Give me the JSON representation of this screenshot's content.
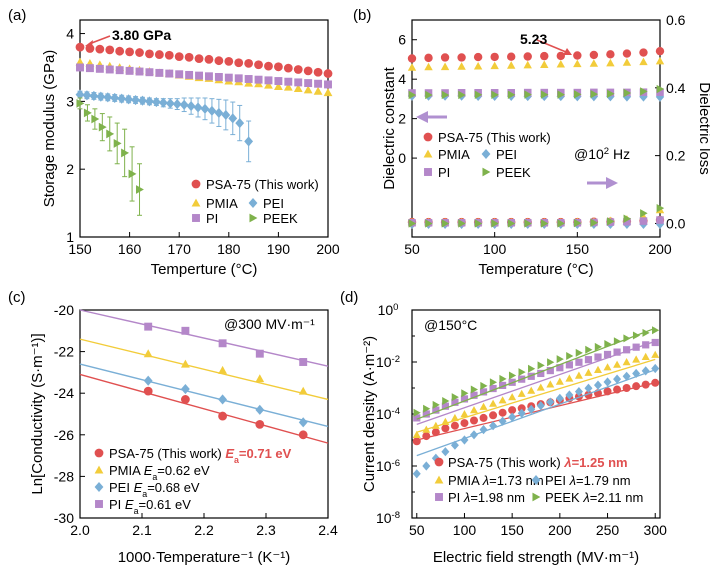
{
  "colors": {
    "psa": "#e05050",
    "pmia": "#f2cc3a",
    "pei": "#7aafd6",
    "pi": "#b487c9",
    "peek": "#7fb24c",
    "highlight": "#e05050",
    "arrow": "#b090d0"
  },
  "chart_data": [
    {
      "id": "a",
      "type": "scatter",
      "panel_label": "(a)",
      "xlabel": "Temperture (°C)",
      "ylabel": "Storage modulus (GPa)",
      "xlim": [
        150,
        200
      ],
      "ylim": [
        1,
        4.2
      ],
      "xticks": [
        150,
        160,
        170,
        180,
        190,
        200
      ],
      "yticks": [
        1,
        2,
        3,
        4
      ],
      "annotation": "3.80 GPa",
      "series": [
        {
          "name": "PSA-75 (This work)",
          "color_key": "psa",
          "marker": "circle",
          "x": [
            150,
            152,
            154,
            156,
            158,
            160,
            162,
            164,
            166,
            168,
            170,
            172,
            174,
            176,
            178,
            180,
            182,
            184,
            186,
            188,
            190,
            192,
            194,
            196,
            198,
            200
          ],
          "y": [
            3.8,
            3.78,
            3.77,
            3.76,
            3.74,
            3.73,
            3.72,
            3.7,
            3.69,
            3.68,
            3.66,
            3.65,
            3.63,
            3.62,
            3.6,
            3.59,
            3.57,
            3.56,
            3.54,
            3.52,
            3.51,
            3.49,
            3.47,
            3.45,
            3.43,
            3.41
          ]
        },
        {
          "name": "PMIA",
          "color_key": "pmia",
          "marker": "triangle",
          "x": [
            150,
            152,
            154,
            156,
            158,
            160,
            162,
            164,
            166,
            168,
            170,
            172,
            174,
            176,
            178,
            180,
            182,
            184,
            186,
            188,
            190,
            192,
            194,
            196,
            198,
            200
          ],
          "y": [
            3.58,
            3.56,
            3.54,
            3.52,
            3.5,
            3.48,
            3.46,
            3.44,
            3.42,
            3.41,
            3.39,
            3.37,
            3.35,
            3.34,
            3.32,
            3.3,
            3.29,
            3.27,
            3.26,
            3.24,
            3.22,
            3.21,
            3.19,
            3.17,
            3.15,
            3.13
          ]
        },
        {
          "name": "PI",
          "color_key": "pi",
          "marker": "square",
          "x": [
            150,
            152,
            154,
            156,
            158,
            160,
            162,
            164,
            166,
            168,
            170,
            172,
            174,
            176,
            178,
            180,
            182,
            184,
            186,
            188,
            190,
            192,
            194,
            196,
            198,
            200
          ],
          "y": [
            3.5,
            3.49,
            3.48,
            3.47,
            3.46,
            3.45,
            3.44,
            3.43,
            3.42,
            3.41,
            3.4,
            3.39,
            3.38,
            3.37,
            3.36,
            3.35,
            3.34,
            3.33,
            3.32,
            3.31,
            3.3,
            3.29,
            3.28,
            3.27,
            3.26,
            3.25
          ]
        },
        {
          "name": "PEI",
          "color_key": "pei",
          "marker": "diamond",
          "x": [
            150,
            151.4,
            152.8,
            154.2,
            155.6,
            157,
            158.4,
            159.8,
            161.2,
            162.6,
            164,
            165.4,
            166.8,
            168.2,
            169.6,
            171,
            172.4,
            173.8,
            175.2,
            176.6,
            178,
            179.4,
            180.8,
            182.2,
            184
          ],
          "y": [
            3.1,
            3.09,
            3.08,
            3.07,
            3.06,
            3.05,
            3.04,
            3.03,
            3.02,
            3.01,
            3,
            2.99,
            2.98,
            2.97,
            2.96,
            2.95,
            2.93,
            2.91,
            2.89,
            2.86,
            2.83,
            2.8,
            2.75,
            2.68,
            2.41
          ],
          "err": [
            0.05,
            0.05,
            0.05,
            0.05,
            0.05,
            0.05,
            0.05,
            0.05,
            0.05,
            0.05,
            0.05,
            0.05,
            0.06,
            0.07,
            0.08,
            0.1,
            0.12,
            0.14,
            0.16,
            0.18,
            0.2,
            0.22,
            0.24,
            0.26,
            0.3
          ]
        },
        {
          "name": "PEEK",
          "color_key": "peek",
          "marker": "triangle-right",
          "x": [
            150,
            151.5,
            153,
            154.5,
            156,
            157.5,
            159,
            160.5,
            162
          ],
          "y": [
            2.97,
            2.83,
            2.74,
            2.62,
            2.52,
            2.38,
            2.24,
            1.93,
            1.7
          ],
          "err": [
            0.08,
            0.12,
            0.15,
            0.2,
            0.25,
            0.3,
            0.35,
            0.4,
            0.38
          ]
        }
      ]
    },
    {
      "id": "b",
      "type": "scatter",
      "panel_label": "(b)",
      "xlabel": "Temperature (°C)",
      "ylabel": "Dielectric constant",
      "y2label": "Dielectric loss",
      "xlim": [
        50,
        200
      ],
      "ylim": [
        -4,
        7
      ],
      "y2lim": [
        -0.04,
        0.6
      ],
      "xticks": [
        50,
        100,
        150,
        200
      ],
      "yticks": [
        0,
        2,
        4,
        6
      ],
      "y2ticks": [
        0.0,
        0.2,
        0.4,
        0.6
      ],
      "y2ticklabels": [
        "0.0",
        "0.2",
        "0.4",
        "0.6"
      ],
      "annotation": "5.23",
      "condition_prefix": "@10",
      "condition_exp": "2",
      "condition_suffix": " Hz",
      "x": [
        50,
        60,
        70,
        80,
        90,
        100,
        110,
        120,
        130,
        140,
        150,
        160,
        170,
        180,
        190,
        200
      ],
      "constant_series": [
        {
          "name": "PSA-75 (This work)",
          "color_key": "psa",
          "marker": "circle",
          "y": [
            5.05,
            5.08,
            5.1,
            5.1,
            5.12,
            5.13,
            5.14,
            5.15,
            5.17,
            5.18,
            5.2,
            5.23,
            5.26,
            5.3,
            5.35,
            5.42
          ]
        },
        {
          "name": "PMIA",
          "color_key": "pmia",
          "marker": "triangle",
          "y": [
            4.6,
            4.62,
            4.63,
            4.65,
            4.66,
            4.68,
            4.7,
            4.72,
            4.74,
            4.76,
            4.78,
            4.8,
            4.82,
            4.85,
            4.88,
            4.92
          ]
        },
        {
          "name": "PEI",
          "color_key": "pei",
          "marker": "diamond",
          "y": [
            3.15,
            3.15,
            3.15,
            3.15,
            3.14,
            3.14,
            3.14,
            3.13,
            3.13,
            3.13,
            3.12,
            3.12,
            3.12,
            3.11,
            3.11,
            3.1
          ]
        },
        {
          "name": "PI",
          "color_key": "pi",
          "marker": "square",
          "y": [
            3.3,
            3.3,
            3.3,
            3.31,
            3.31,
            3.31,
            3.31,
            3.32,
            3.32,
            3.32,
            3.32,
            3.33,
            3.33,
            3.33,
            3.34,
            3.34
          ]
        },
        {
          "name": "PEEK",
          "color_key": "peek",
          "marker": "triangle-right",
          "y": [
            3.2,
            3.2,
            3.2,
            3.2,
            3.21,
            3.21,
            3.21,
            3.22,
            3.22,
            3.22,
            3.23,
            3.24,
            3.26,
            3.3,
            3.38,
            3.5
          ]
        }
      ],
      "loss_series": [
        {
          "name": "PSA-75 (This work)",
          "color_key": "psa",
          "marker": "circle",
          "y": [
            0.004,
            0.004,
            0.004,
            0.004,
            0.004,
            0.004,
            0.004,
            0.004,
            0.004,
            0.004,
            0.004,
            0.005,
            0.005,
            0.006,
            0.008,
            0.01
          ]
        },
        {
          "name": "PMIA",
          "color_key": "pmia",
          "marker": "triangle",
          "y": [
            0.004,
            0.004,
            0.004,
            0.004,
            0.004,
            0.004,
            0.004,
            0.004,
            0.004,
            0.004,
            0.005,
            0.006,
            0.008,
            0.012,
            0.02,
            0.04
          ]
        },
        {
          "name": "PEI",
          "color_key": "pei",
          "marker": "diamond",
          "y": [
            -0.002,
            -0.002,
            -0.002,
            -0.002,
            -0.002,
            -0.002,
            -0.002,
            -0.002,
            -0.002,
            -0.002,
            -0.002,
            -0.002,
            -0.002,
            -0.002,
            -0.002,
            -0.002
          ]
        },
        {
          "name": "PI",
          "color_key": "pi",
          "marker": "square",
          "y": [
            0.002,
            0.002,
            0.002,
            0.002,
            0.002,
            0.002,
            0.002,
            0.002,
            0.002,
            0.002,
            0.002,
            0.003,
            0.004,
            0.005,
            0.007,
            0.01
          ]
        },
        {
          "name": "PEEK",
          "color_key": "peek",
          "marker": "triangle-right",
          "y": [
            0.0,
            0.0,
            0.0,
            0.0,
            0.0,
            0.0,
            0.0,
            0.0,
            0.0,
            0.0,
            0.001,
            0.002,
            0.006,
            0.014,
            0.03,
            0.045
          ]
        }
      ]
    },
    {
      "id": "c",
      "type": "scatter",
      "panel_label": "(c)",
      "xlabel": "1000·Temperature⁻¹ (K⁻¹)",
      "ylabel": "Ln[Conductivity (S·m⁻¹)]",
      "xlim": [
        2.0,
        2.4
      ],
      "ylim": [
        -30,
        -20
      ],
      "xticks": [
        2.0,
        2.1,
        2.2,
        2.3,
        2.4
      ],
      "xticklabels": [
        "2.0",
        "2.1",
        "2.2",
        "2.3",
        "2.4"
      ],
      "yticks": [
        -30,
        -28,
        -26,
        -24,
        -22,
        -20
      ],
      "condition": "@300 MV·m⁻¹",
      "series": [
        {
          "name": "PSA-75 (This work)",
          "color_key": "psa",
          "marker": "circle",
          "ea_text": "0.71 eV",
          "highlight": true,
          "x": [
            2.11,
            2.17,
            2.23,
            2.29,
            2.36
          ],
          "y": [
            -23.9,
            -24.3,
            -25.1,
            -25.5,
            -26.0
          ],
          "fit": [
            [
              2.0,
              -23.1
            ],
            [
              2.4,
              -26.4
            ]
          ]
        },
        {
          "name": "PMIA",
          "color_key": "pmia",
          "marker": "triangle",
          "ea_text": "0.62 eV",
          "x": [
            2.11,
            2.17,
            2.23,
            2.29,
            2.36
          ],
          "y": [
            -22.1,
            -22.6,
            -22.9,
            -23.3,
            -23.9
          ],
          "fit": [
            [
              2.0,
              -21.4
            ],
            [
              2.4,
              -24.3
            ]
          ]
        },
        {
          "name": "PEI",
          "color_key": "pei",
          "marker": "diamond",
          "ea_text": "0.68 eV",
          "x": [
            2.11,
            2.17,
            2.23,
            2.29,
            2.36
          ],
          "y": [
            -23.4,
            -23.8,
            -24.3,
            -24.8,
            -25.4
          ],
          "fit": [
            [
              2.0,
              -22.6
            ],
            [
              2.4,
              -25.6
            ]
          ]
        },
        {
          "name": "PI",
          "color_key": "pi",
          "marker": "square",
          "ea_text": "0.61 eV",
          "x": [
            2.11,
            2.17,
            2.23,
            2.29,
            2.36
          ],
          "y": [
            -20.8,
            -21.0,
            -21.6,
            -22.1,
            -22.5
          ],
          "fit": [
            [
              2.0,
              -20.0
            ],
            [
              2.4,
              -22.7
            ]
          ]
        }
      ]
    },
    {
      "id": "d",
      "type": "scatter",
      "panel_label": "(d)",
      "xlabel": "Electric field strength (MV·m⁻¹)",
      "ylabel": "Current density (A·m⁻²)",
      "yscale": "log",
      "xlim": [
        45,
        305
      ],
      "ylim_exp": [
        -8,
        0
      ],
      "xticks": [
        50,
        100,
        150,
        200,
        250,
        300
      ],
      "yticks_exp": [
        -8,
        -6,
        -4,
        -2,
        0
      ],
      "condition": "@150°C",
      "x": [
        50,
        60,
        70,
        80,
        90,
        100,
        110,
        120,
        130,
        140,
        150,
        160,
        170,
        180,
        190,
        200,
        210,
        220,
        230,
        240,
        250,
        260,
        270,
        280,
        290,
        300
      ],
      "series": [
        {
          "name": "PSA-75 (This work)",
          "color_key": "psa",
          "marker": "circle",
          "lambda_text": "1.25 nm",
          "highlight": true,
          "fit_exp": [
            -5.0,
            -2.8
          ],
          "log10": [
            -5.05,
            -4.85,
            -4.7,
            -4.55,
            -4.45,
            -4.35,
            -4.25,
            -4.15,
            -4.05,
            -3.95,
            -3.85,
            -3.78,
            -3.7,
            -3.62,
            -3.55,
            -3.47,
            -3.4,
            -3.33,
            -3.26,
            -3.2,
            -3.13,
            -3.06,
            -3.0,
            -2.93,
            -2.87,
            -2.8
          ]
        },
        {
          "name": "PMIA",
          "color_key": "pmia",
          "marker": "triangle",
          "lambda_text": "1.73 nm",
          "fit_exp": [
            -4.7,
            -1.9
          ],
          "log10": [
            -4.8,
            -4.6,
            -4.45,
            -4.3,
            -4.15,
            -4.0,
            -3.85,
            -3.72,
            -3.6,
            -3.47,
            -3.35,
            -3.22,
            -3.1,
            -2.98,
            -2.86,
            -2.75,
            -2.63,
            -2.52,
            -2.41,
            -2.3,
            -2.2,
            -2.1,
            -2.0,
            -1.9,
            -1.8,
            -1.72
          ]
        },
        {
          "name": "PEI",
          "color_key": "pei",
          "marker": "diamond",
          "lambda_text": "1.79 nm",
          "fit_exp": [
            -5.6,
            -2.3
          ],
          "log10": [
            -6.3,
            -6.0,
            -5.7,
            -5.45,
            -5.2,
            -5.0,
            -4.8,
            -4.6,
            -4.45,
            -4.28,
            -4.12,
            -3.97,
            -3.82,
            -3.68,
            -3.54,
            -3.4,
            -3.27,
            -3.14,
            -3.01,
            -2.89,
            -2.77,
            -2.66,
            -2.55,
            -2.44,
            -2.34,
            -2.25
          ]
        },
        {
          "name": "PI",
          "color_key": "pi",
          "marker": "square",
          "lambda_text": "1.98 nm",
          "fit_exp": [
            -4.4,
            -1.2
          ],
          "log10": [
            -4.15,
            -4.0,
            -3.85,
            -3.7,
            -3.55,
            -3.42,
            -3.28,
            -3.15,
            -3.02,
            -2.9,
            -2.78,
            -2.66,
            -2.55,
            -2.44,
            -2.33,
            -2.22,
            -2.11,
            -2.01,
            -1.91,
            -1.81,
            -1.71,
            -1.62,
            -1.53,
            -1.43,
            -1.34,
            -1.25
          ]
        },
        {
          "name": "PEEK",
          "color_key": "peek",
          "marker": "triangle-right",
          "lambda_text": "2.11 nm",
          "fit_exp": [
            -4.2,
            -0.7
          ],
          "log10": [
            -3.95,
            -3.8,
            -3.65,
            -3.5,
            -3.35,
            -3.2,
            -3.06,
            -2.92,
            -2.78,
            -2.65,
            -2.52,
            -2.39,
            -2.26,
            -2.13,
            -2.01,
            -1.89,
            -1.77,
            -1.65,
            -1.53,
            -1.42,
            -1.31,
            -1.2,
            -1.09,
            -0.98,
            -0.88,
            -0.78
          ]
        }
      ]
    }
  ]
}
